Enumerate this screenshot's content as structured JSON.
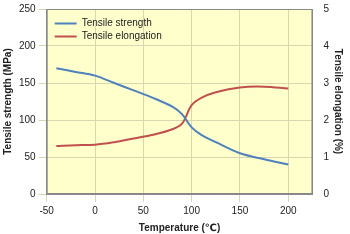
{
  "chart_data": {
    "type": "line",
    "x_label": "Temperature (℃)",
    "y_label": "Tensile strength (MPa)",
    "y2_label": "Tensile elongation (%)",
    "x": [
      -40,
      -20,
      0,
      20,
      40,
      60,
      80,
      90,
      100,
      110,
      125,
      150,
      175,
      200
    ],
    "series": [
      {
        "name": "Tensile strength",
        "color": "#4f81bd",
        "values": [
          170,
          165,
          160,
          150,
          140,
          130,
          118,
          108,
          90,
          80,
          70,
          55,
          47,
          40
        ]
      },
      {
        "name": "Tensile elongation",
        "color": "#c0504d",
        "axis": "y2",
        "values": [
          1.3,
          1.32,
          1.33,
          1.4,
          1.5,
          1.6,
          1.75,
          1.9,
          2.4,
          2.6,
          2.75,
          2.88,
          2.9,
          2.85
        ]
      }
    ],
    "xlim": [
      -50,
      225
    ],
    "xticks": [
      -50,
      0,
      50,
      100,
      150,
      200
    ],
    "ylim": [
      0,
      250
    ],
    "yticks": [
      0,
      50,
      100,
      150,
      200,
      250
    ],
    "y2lim": [
      0,
      5
    ],
    "y2ticks": [
      0,
      1,
      2,
      3,
      4,
      5
    ],
    "grid": true,
    "legend": "upper left"
  }
}
